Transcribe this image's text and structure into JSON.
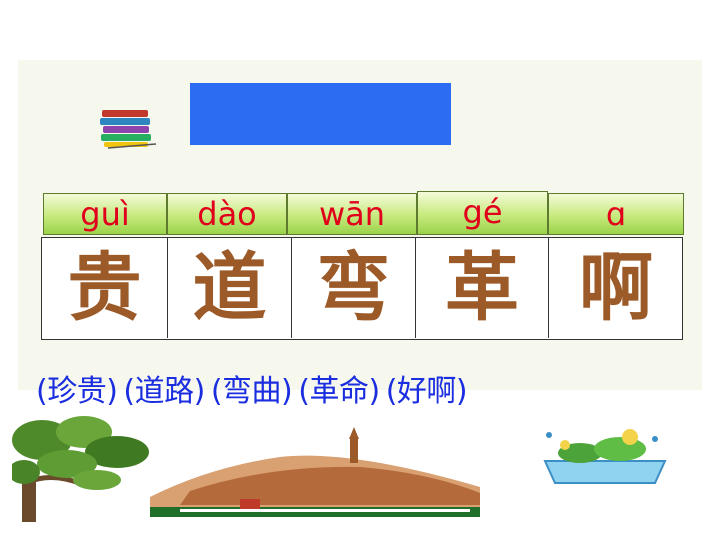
{
  "slide": {
    "colors": {
      "title_box": "#2b6cf2",
      "pinyin_text": "#e0001b",
      "pinyin_cell": "#b6e06a",
      "character_text": "#9b5a27",
      "word_text": "#1a2ee0"
    },
    "icons": [
      "books-icon",
      "tree-image",
      "pagoda-hill-image",
      "flower-pot-image"
    ]
  },
  "pinyin": [
    "guì",
    "dào",
    "wān",
    "gé",
    "ɑ"
  ],
  "characters": [
    "贵",
    "道",
    "弯",
    "革",
    "啊"
  ],
  "words": [
    "(珍贵)",
    "(道路)",
    "(弯曲)",
    "(革命)",
    "(好啊)"
  ]
}
